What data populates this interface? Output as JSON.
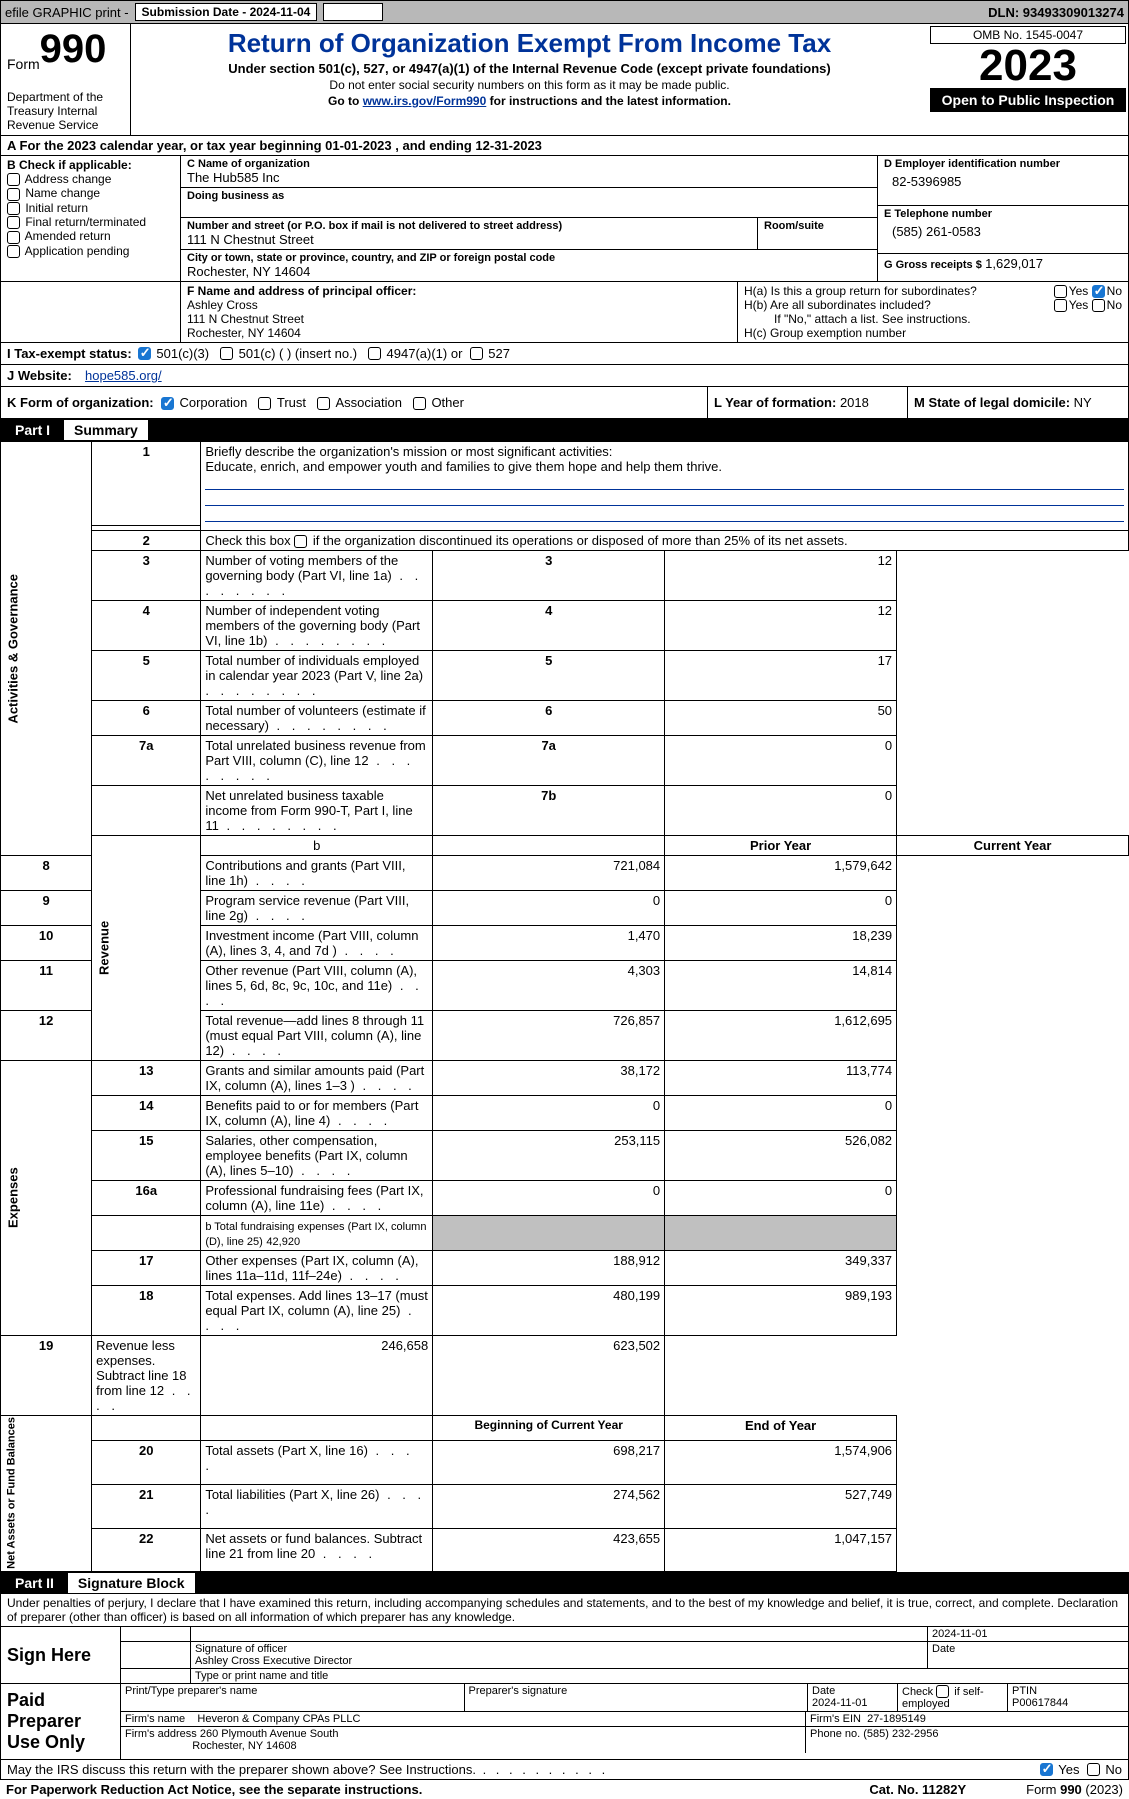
{
  "topbar": {
    "efile": "efile GRAPHIC print -",
    "sub_label": "Submission Date - 2024-11-04",
    "dln_label": "DLN: 93493309013274"
  },
  "header": {
    "form_word": "Form",
    "form_num": "990",
    "title": "Return of Organization Exempt From Income Tax",
    "sub": "Under section 501(c), 527, or 4947(a)(1) of the Internal Revenue Code (except private foundations)",
    "sub2": "Do not enter social security numbers on this form as it may be made public.",
    "sub3_pre": "Go to ",
    "sub3_link": "www.irs.gov/Form990",
    "sub3_post": " for instructions and the latest information.",
    "omb": "OMB No. 1545-0047",
    "year": "2023",
    "inspection": "Open to Public Inspection",
    "dept": "Department of the Treasury Internal Revenue Service"
  },
  "sectionA": {
    "year_line": "A For the 2023 calendar year, or tax year beginning 01-01-2023     , and ending 12-31-2023",
    "b_label": "B Check if applicable:",
    "b_items": [
      "Address change",
      "Name change",
      "Initial return",
      "Final return/terminated",
      "Amended return",
      "Application pending"
    ],
    "c_name_label": "C Name of organization",
    "c_name": "The Hub585 Inc",
    "c_dba_label": "Doing business as",
    "c_street_label": "Number and street (or P.O. box if mail is not delivered to street address)",
    "c_street": "111 N Chestnut Street",
    "c_room_label": "Room/suite",
    "c_city_label": "City or town, state or province, country, and ZIP or foreign postal code",
    "c_city": "Rochester, NY  14604",
    "d_label": "D Employer identification number",
    "d_val": "82-5396985",
    "e_label": "E Telephone number",
    "e_val": "(585) 261-0583",
    "g_label": "G Gross receipts $",
    "g_val": "1,629,017",
    "f_label": "F  Name and address of principal officer:",
    "f_name": "Ashley Cross",
    "f_addr1": "111 N Chestnut Street",
    "f_addr2": "Rochester, NY  14604",
    "ha_label": "H(a)  Is this a group return for subordinates?",
    "hb_label": "H(b)  Are all subordinates included?",
    "h_note": "If \"No,\" attach a list. See instructions.",
    "hc_label": "H(c)  Group exemption number",
    "yes": "Yes",
    "no": "No"
  },
  "sectionI": {
    "label": "I  Tax-exempt status:",
    "opts": [
      "501(c)(3)",
      "501(c) (  ) (insert no.)",
      "4947(a)(1) or",
      "527"
    ]
  },
  "sectionJ": {
    "label": "J  Website:",
    "val": "hope585.org/"
  },
  "sectionK": {
    "label": "K Form of organization:",
    "opts": [
      "Corporation",
      "Trust",
      "Association",
      "Other"
    ]
  },
  "sectionL": {
    "label": "L Year of formation:",
    "val": "2018"
  },
  "sectionM": {
    "label": "M State of legal domicile:",
    "val": "NY"
  },
  "part1": {
    "num": "Part I",
    "title": "Summary",
    "side_gov": "Activities & Governance",
    "side_rev": "Revenue",
    "side_exp": "Expenses",
    "side_net": "Net Assets or Fund Balances",
    "l1_label": "Briefly describe the organization's mission or most significant activities:",
    "l1_val": "Educate, enrich, and empower youth and families to give them hope and help them thrive.",
    "l2_label": "Check this box",
    "l2_post": "if the organization discontinued its operations or disposed of more than 25% of its net assets.",
    "rows_gov": [
      {
        "n": "3",
        "d": "Number of voting members of the governing body (Part VI, line 1a)",
        "b": "3",
        "v": "12"
      },
      {
        "n": "4",
        "d": "Number of independent voting members of the governing body (Part VI, line 1b)",
        "b": "4",
        "v": "12"
      },
      {
        "n": "5",
        "d": "Total number of individuals employed in calendar year 2023 (Part V, line 2a)",
        "b": "5",
        "v": "17"
      },
      {
        "n": "6",
        "d": "Total number of volunteers (estimate if necessary)",
        "b": "6",
        "v": "50"
      },
      {
        "n": "7a",
        "d": "Total unrelated business revenue from Part VIII, column (C), line 12",
        "b": "7a",
        "v": "0"
      },
      {
        "n": "",
        "d": "Net unrelated business taxable income from Form 990-T, Part I, line 11",
        "b": "7b",
        "v": "0"
      }
    ],
    "col_prior": "Prior Year",
    "col_curr": "Current Year",
    "rows_rev": [
      {
        "n": "8",
        "d": "Contributions and grants (Part VIII, line 1h)",
        "p": "721,084",
        "c": "1,579,642"
      },
      {
        "n": "9",
        "d": "Program service revenue (Part VIII, line 2g)",
        "p": "0",
        "c": "0"
      },
      {
        "n": "10",
        "d": "Investment income (Part VIII, column (A), lines 3, 4, and 7d )",
        "p": "1,470",
        "c": "18,239"
      },
      {
        "n": "11",
        "d": "Other revenue (Part VIII, column (A), lines 5, 6d, 8c, 9c, 10c, and 11e)",
        "p": "4,303",
        "c": "14,814"
      },
      {
        "n": "12",
        "d": "Total revenue—add lines 8 through 11 (must equal Part VIII, column (A), line 12)",
        "p": "726,857",
        "c": "1,612,695"
      }
    ],
    "rows_exp": [
      {
        "n": "13",
        "d": "Grants and similar amounts paid (Part IX, column (A), lines 1–3 )",
        "p": "38,172",
        "c": "113,774"
      },
      {
        "n": "14",
        "d": "Benefits paid to or for members (Part IX, column (A), line 4)",
        "p": "0",
        "c": "0"
      },
      {
        "n": "15",
        "d": "Salaries, other compensation, employee benefits (Part IX, column (A), lines 5–10)",
        "p": "253,115",
        "c": "526,082"
      },
      {
        "n": "16a",
        "d": "Professional fundraising fees (Part IX, column (A), line 11e)",
        "p": "0",
        "c": "0"
      }
    ],
    "l16b_label": "b  Total fundraising expenses (Part IX, column (D), line 25)",
    "l16b_val": "42,920",
    "rows_exp2": [
      {
        "n": "17",
        "d": "Other expenses (Part IX, column (A), lines 11a–11d, 11f–24e)",
        "p": "188,912",
        "c": "349,337"
      },
      {
        "n": "18",
        "d": "Total expenses. Add lines 13–17 (must equal Part IX, column (A), line 25)",
        "p": "480,199",
        "c": "989,193"
      },
      {
        "n": "19",
        "d": "Revenue less expenses. Subtract line 18 from line 12",
        "p": "246,658",
        "c": "623,502"
      }
    ],
    "col_begin": "Beginning of Current Year",
    "col_end": "End of Year",
    "rows_net": [
      {
        "n": "20",
        "d": "Total assets (Part X, line 16)",
        "p": "698,217",
        "c": "1,574,906"
      },
      {
        "n": "21",
        "d": "Total liabilities (Part X, line 26)",
        "p": "274,562",
        "c": "527,749"
      },
      {
        "n": "22",
        "d": "Net assets or fund balances. Subtract line 21 from line 20",
        "p": "423,655",
        "c": "1,047,157"
      }
    ]
  },
  "part2": {
    "num": "Part II",
    "title": "Signature Block",
    "perjury": "Under penalties of perjury, I declare that I have examined this return, including accompanying schedules and statements, and to the best of my knowledge and belief, it is true, correct, and complete. Declaration of preparer (other than officer) is based on all information of which preparer has any knowledge.",
    "sign_here": "Sign Here",
    "sig_date": "2024-11-01",
    "sig_officer_label": "Signature of officer",
    "sig_officer": "Ashley Cross  Executive Director",
    "sig_type_label": "Type or print name and title",
    "date_label": "Date",
    "paid_label": "Paid Preparer Use Only",
    "prep_name_label": "Print/Type preparer's name",
    "prep_sig_label": "Preparer's signature",
    "prep_date": "2024-11-01",
    "prep_check_label": "Check          if self-employed",
    "ptin_label": "PTIN",
    "ptin": "P00617844",
    "firm_name_label": "Firm's name",
    "firm_name": "Heveron & Company CPAs PLLC",
    "firm_ein_label": "Firm's EIN",
    "firm_ein": "27-1895149",
    "firm_addr_label": "Firm's address",
    "firm_addr1": "260 Plymouth Avenue South",
    "firm_addr2": "Rochester, NY  14608",
    "firm_phone_label": "Phone no.",
    "firm_phone": "(585) 232-2956",
    "discuss": "May the IRS discuss this return with the preparer shown above? See Instructions."
  },
  "footer": {
    "paperwork": "For Paperwork Reduction Act Notice, see the separate instructions.",
    "cat": "Cat. No. 11282Y",
    "form": "Form 990 (2023)"
  }
}
